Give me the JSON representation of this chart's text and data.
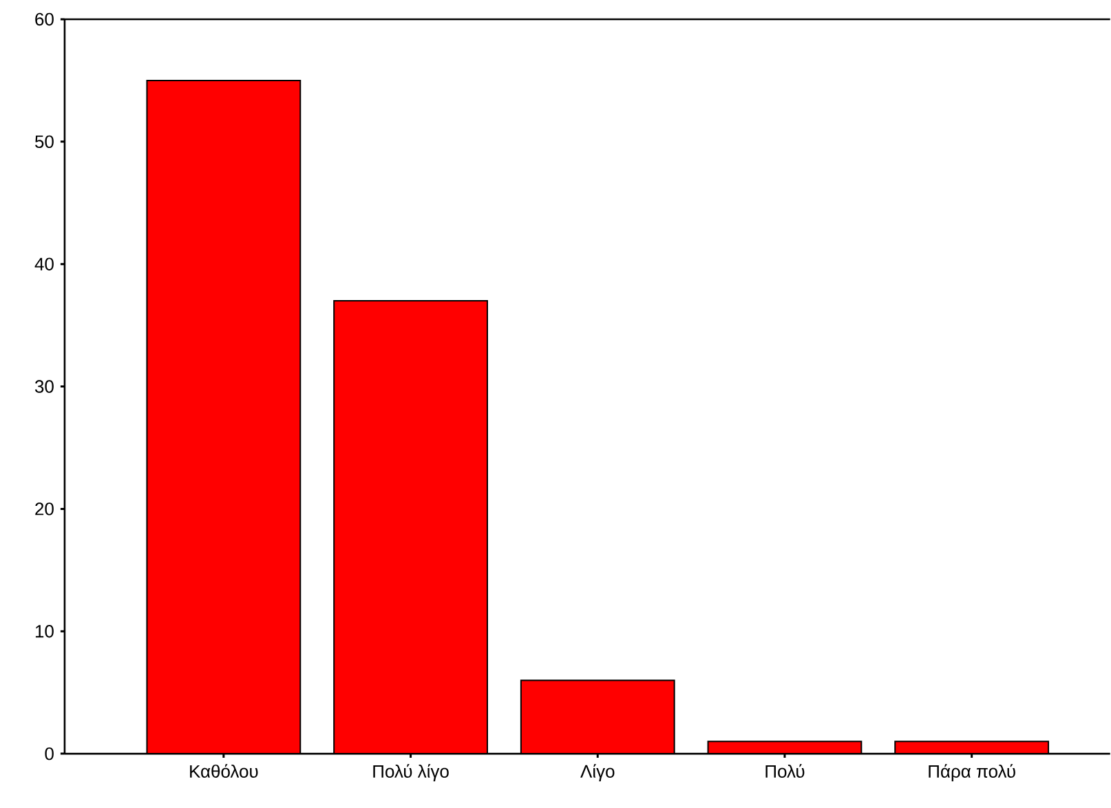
{
  "chart_data": {
    "type": "bar",
    "categories": [
      "Καθόλου",
      "Πολύ λίγο",
      "Λίγο",
      "Πολύ",
      "Πάρα πολύ"
    ],
    "values": [
      55,
      37,
      6,
      1,
      1
    ],
    "color": "#ff0000",
    "ylim": [
      0,
      60
    ],
    "yticks": [
      0,
      10,
      20,
      30,
      40,
      50,
      60
    ]
  }
}
